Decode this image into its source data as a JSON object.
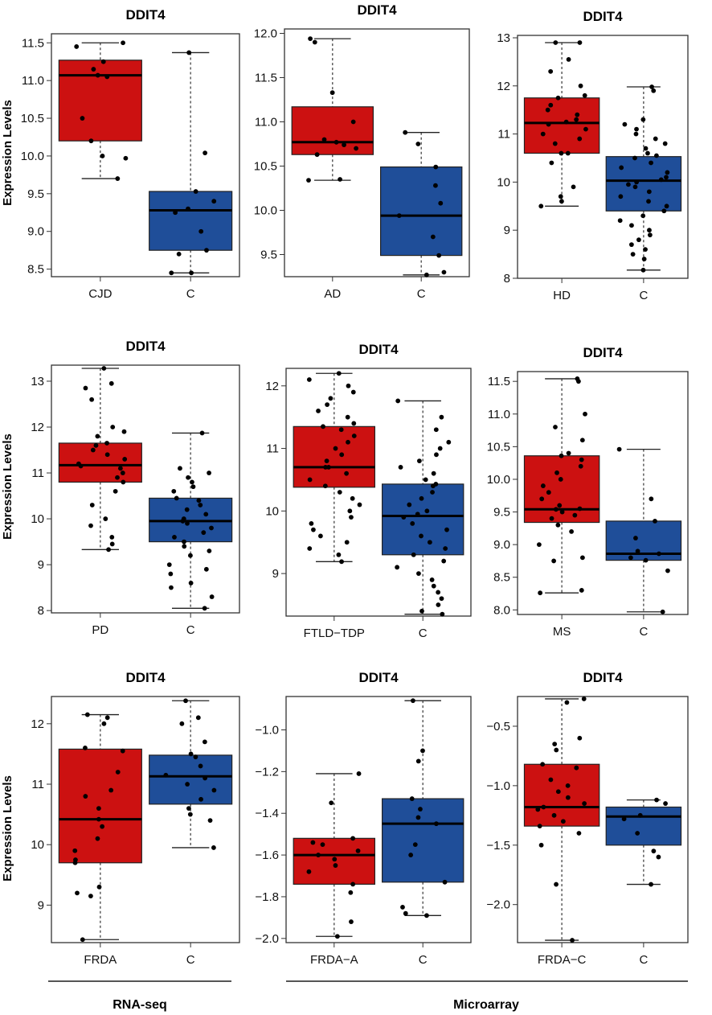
{
  "figure": {
    "ylabel": "Expression Levels",
    "footer_labels": [
      "RNA-seq",
      "Microarray"
    ]
  },
  "colors": {
    "disease": "#cc1111",
    "control": "#1f4e99",
    "points": "#000000"
  },
  "chart_data": [
    {
      "type": "box",
      "title": "DDIT4",
      "ylabel": "Expression Levels",
      "categories": [
        "CJD",
        "C"
      ],
      "yticks": [
        8.5,
        9.0,
        9.5,
        10.0,
        10.5,
        11.0,
        11.5
      ],
      "ytick_labels": [
        "8.5",
        "9.0",
        "9.5",
        "10.0",
        "10.5",
        "11.0",
        "11.5"
      ],
      "ylim": [
        8.4,
        11.62
      ],
      "boxes": [
        {
          "whisker_low": 9.7,
          "q1": 10.2,
          "median": 11.07,
          "q3": 11.27,
          "whisker_high": 11.5
        },
        {
          "whisker_low": 8.45,
          "q1": 8.75,
          "median": 9.28,
          "q3": 9.53,
          "whisker_high": 11.37
        }
      ],
      "points": [
        [
          11.5,
          11.45,
          11.25,
          11.15,
          11.07,
          11.05,
          10.5,
          10.2,
          10.0,
          9.97,
          9.7
        ],
        [
          11.37,
          10.04,
          9.53,
          9.4,
          9.3,
          9.25,
          9.0,
          8.75,
          8.7,
          8.45,
          8.45
        ]
      ]
    },
    {
      "type": "box",
      "title": "DDIT4",
      "categories": [
        "AD",
        "C"
      ],
      "yticks": [
        9.5,
        10.0,
        10.5,
        11.0,
        11.5,
        12.0
      ],
      "ytick_labels": [
        "9.5",
        "10.0",
        "10.5",
        "11.0",
        "11.5",
        "12.0"
      ],
      "ylim": [
        9.25,
        12.05
      ],
      "boxes": [
        {
          "whisker_low": 10.34,
          "q1": 10.63,
          "median": 10.77,
          "q3": 11.17,
          "whisker_high": 11.94
        },
        {
          "whisker_low": 9.27,
          "q1": 9.49,
          "median": 9.94,
          "q3": 10.49,
          "whisker_high": 10.88
        }
      ],
      "points": [
        [
          11.94,
          11.9,
          11.33,
          11.0,
          10.8,
          10.77,
          10.74,
          10.7,
          10.63,
          10.35,
          10.34
        ],
        [
          10.88,
          10.75,
          10.49,
          10.28,
          10.08,
          9.94,
          9.7,
          9.49,
          9.3,
          9.27
        ]
      ]
    },
    {
      "type": "box",
      "title": "DDIT4",
      "categories": [
        "HD",
        "C"
      ],
      "yticks": [
        8,
        9,
        10,
        11,
        12,
        13
      ],
      "ytick_labels": [
        "8",
        "9",
        "10",
        "11",
        "12",
        "13"
      ],
      "ylim": [
        8.0,
        13.05
      ],
      "boxes": [
        {
          "whisker_low": 9.5,
          "q1": 10.6,
          "median": 11.23,
          "q3": 11.75,
          "whisker_high": 12.9
        },
        {
          "whisker_low": 8.17,
          "q1": 9.4,
          "median": 10.03,
          "q3": 10.53,
          "whisker_high": 11.98
        }
      ],
      "points": [
        [
          12.9,
          12.9,
          12.55,
          12.3,
          12.0,
          11.8,
          11.75,
          11.6,
          11.5,
          11.4,
          11.3,
          11.25,
          11.2,
          11.1,
          11.0,
          10.9,
          10.8,
          10.6,
          10.6,
          10.4,
          9.9,
          9.7,
          9.6,
          9.5
        ],
        [
          11.98,
          11.9,
          11.3,
          11.2,
          11.1,
          11.0,
          10.9,
          10.8,
          10.7,
          10.6,
          10.55,
          10.5,
          10.4,
          10.3,
          10.2,
          10.1,
          10.05,
          10.0,
          9.95,
          9.9,
          9.8,
          9.7,
          9.6,
          9.5,
          9.4,
          9.3,
          9.2,
          9.1,
          9.0,
          8.9,
          8.8,
          8.7,
          8.6,
          8.5,
          8.4,
          8.17
        ]
      ]
    },
    {
      "type": "box",
      "title": "DDIT4",
      "categories": [
        "PD",
        "C"
      ],
      "yticks": [
        8,
        9,
        10,
        11,
        12,
        13
      ],
      "ytick_labels": [
        "8",
        "9",
        "10",
        "11",
        "12",
        "13"
      ],
      "ylim": [
        7.95,
        13.35
      ],
      "boxes": [
        {
          "whisker_low": 9.33,
          "q1": 10.8,
          "median": 11.17,
          "q3": 11.65,
          "whisker_high": 13.28
        },
        {
          "whisker_low": 8.05,
          "q1": 9.5,
          "median": 9.95,
          "q3": 10.45,
          "whisker_high": 11.87
        }
      ],
      "points": [
        [
          13.28,
          12.95,
          12.85,
          12.6,
          12.0,
          11.9,
          11.8,
          11.65,
          11.6,
          11.5,
          11.4,
          11.3,
          11.2,
          11.15,
          11.1,
          11.0,
          10.9,
          10.8,
          10.6,
          10.3,
          10.0,
          9.85,
          9.6,
          9.45,
          9.33
        ],
        [
          11.87,
          11.1,
          11.0,
          10.9,
          10.8,
          10.7,
          10.6,
          10.45,
          10.4,
          10.3,
          10.2,
          10.1,
          10.0,
          9.95,
          9.9,
          9.8,
          9.7,
          9.6,
          9.5,
          9.4,
          9.3,
          9.2,
          9.0,
          8.9,
          8.8,
          8.6,
          8.5,
          8.3,
          8.05
        ]
      ]
    },
    {
      "type": "box",
      "title": "DDIT4",
      "categories": [
        "FTLD−TDP",
        "C"
      ],
      "yticks": [
        9,
        10,
        11,
        12
      ],
      "ytick_labels": [
        "9",
        "10",
        "11",
        "12"
      ],
      "ylim": [
        8.32,
        12.28
      ],
      "boxes": [
        {
          "whisker_low": 9.19,
          "q1": 10.38,
          "median": 10.7,
          "q3": 11.35,
          "whisker_high": 12.2
        },
        {
          "whisker_low": 8.35,
          "q1": 9.3,
          "median": 9.92,
          "q3": 10.43,
          "whisker_high": 11.76
        }
      ],
      "points": [
        [
          12.2,
          12.1,
          12.0,
          11.9,
          11.8,
          11.7,
          11.6,
          11.5,
          11.4,
          11.35,
          11.3,
          11.2,
          11.1,
          11.0,
          10.9,
          10.8,
          10.7,
          10.7,
          10.6,
          10.5,
          10.4,
          10.3,
          10.2,
          10.1,
          10.0,
          9.9,
          9.8,
          9.7,
          9.6,
          9.5,
          9.4,
          9.3,
          9.19
        ],
        [
          11.76,
          11.5,
          11.3,
          11.1,
          11.0,
          10.9,
          10.8,
          10.7,
          10.6,
          10.5,
          10.43,
          10.4,
          10.3,
          10.2,
          10.1,
          10.0,
          9.95,
          9.9,
          9.8,
          9.7,
          9.6,
          9.5,
          9.4,
          9.3,
          9.2,
          9.1,
          9.0,
          8.9,
          8.8,
          8.7,
          8.6,
          8.5,
          8.4,
          8.35
        ]
      ]
    },
    {
      "type": "box",
      "title": "DDIT4",
      "categories": [
        "MS",
        "C"
      ],
      "yticks": [
        8.0,
        8.5,
        9.0,
        9.5,
        10.0,
        10.5,
        11.0,
        11.5
      ],
      "ytick_labels": [
        "8.0",
        "8.5",
        "9.0",
        "9.5",
        "10.0",
        "10.5",
        "11.0",
        "11.5"
      ],
      "ylim": [
        7.93,
        11.65
      ],
      "boxes": [
        {
          "whisker_low": 8.26,
          "q1": 9.34,
          "median": 9.54,
          "q3": 10.36,
          "whisker_high": 11.54
        },
        {
          "whisker_low": 7.97,
          "q1": 8.76,
          "median": 8.86,
          "q3": 9.36,
          "whisker_high": 10.46
        }
      ],
      "points": [
        [
          11.54,
          11.5,
          11.0,
          10.8,
          10.6,
          10.4,
          10.36,
          10.3,
          10.2,
          10.1,
          10.0,
          9.9,
          9.8,
          9.7,
          9.6,
          9.55,
          9.54,
          9.5,
          9.45,
          9.4,
          9.3,
          9.2,
          9.0,
          8.8,
          8.75,
          8.3,
          8.26
        ],
        [
          10.46,
          9.7,
          9.36,
          9.1,
          8.9,
          8.86,
          8.8,
          8.76,
          8.6,
          7.97
        ]
      ]
    },
    {
      "type": "box",
      "title": "DDIT4",
      "categories": [
        "FRDA",
        "C"
      ],
      "yticks": [
        9,
        10,
        11,
        12
      ],
      "ytick_labels": [
        "9",
        "10",
        "11",
        "12"
      ],
      "ylim": [
        8.38,
        12.45
      ],
      "boxes": [
        {
          "whisker_low": 8.43,
          "q1": 9.7,
          "median": 10.42,
          "q3": 11.58,
          "whisker_high": 12.15
        },
        {
          "whisker_low": 9.95,
          "q1": 10.67,
          "median": 11.13,
          "q3": 11.48,
          "whisker_high": 12.38
        }
      ],
      "points": [
        [
          12.15,
          12.1,
          12.0,
          11.6,
          11.55,
          11.2,
          10.9,
          10.8,
          10.6,
          10.42,
          10.3,
          10.1,
          9.9,
          9.75,
          9.7,
          9.3,
          9.2,
          9.15,
          8.43
        ],
        [
          12.38,
          12.1,
          12.0,
          11.7,
          11.5,
          11.45,
          11.3,
          11.15,
          11.1,
          11.0,
          10.9,
          10.75,
          10.6,
          10.5,
          10.4,
          9.95
        ]
      ]
    },
    {
      "type": "box",
      "title": "DDIT4",
      "categories": [
        "FRDA−A",
        "C"
      ],
      "yticks": [
        -2.0,
        -1.8,
        -1.6,
        -1.4,
        -1.2,
        -1.0
      ],
      "ytick_labels": [
        "−2.0",
        "−1.8",
        "−1.6",
        "−1.4",
        "−1.2",
        "−1.0"
      ],
      "ylim": [
        -2.02,
        -0.84
      ],
      "boxes": [
        {
          "whisker_low": -1.99,
          "q1": -1.74,
          "median": -1.6,
          "q3": -1.52,
          "whisker_high": -1.21
        },
        {
          "whisker_low": -1.89,
          "q1": -1.73,
          "median": -1.45,
          "q3": -1.33,
          "whisker_high": -0.86
        }
      ],
      "points": [
        [
          -1.21,
          -1.35,
          -1.52,
          -1.54,
          -1.55,
          -1.58,
          -1.6,
          -1.62,
          -1.65,
          -1.68,
          -1.74,
          -1.78,
          -1.92,
          -1.99
        ],
        [
          -0.86,
          -1.1,
          -1.15,
          -1.33,
          -1.38,
          -1.42,
          -1.45,
          -1.55,
          -1.6,
          -1.73,
          -1.85,
          -1.88,
          -1.89
        ]
      ]
    },
    {
      "type": "box",
      "title": "DDIT4",
      "categories": [
        "FRDA−C",
        "C"
      ],
      "yticks": [
        -2.0,
        -1.5,
        -1.0,
        -0.5
      ],
      "ytick_labels": [
        "−2.0",
        "−1.5",
        "−1.0",
        "−0.5"
      ],
      "ylim": [
        -2.32,
        -0.25
      ],
      "boxes": [
        {
          "whisker_low": -2.3,
          "q1": -1.34,
          "median": -1.18,
          "q3": -0.82,
          "whisker_high": -0.27
        },
        {
          "whisker_low": -1.83,
          "q1": -1.5,
          "median": -1.26,
          "q3": -1.18,
          "whisker_high": -1.12
        }
      ],
      "points": [
        [
          -0.27,
          -0.3,
          -0.6,
          -0.65,
          -0.7,
          -0.82,
          -0.85,
          -0.95,
          -1.0,
          -1.05,
          -1.1,
          -1.15,
          -1.18,
          -1.2,
          -1.25,
          -1.3,
          -1.34,
          -1.4,
          -1.5,
          -1.83,
          -2.3
        ],
        [
          -1.12,
          -1.15,
          -1.25,
          -1.28,
          -1.4,
          -1.55,
          -1.6,
          -1.83
        ]
      ]
    }
  ]
}
